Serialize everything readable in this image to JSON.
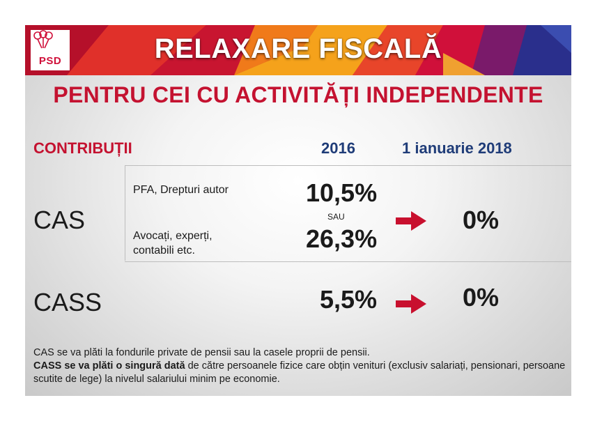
{
  "banner": {
    "logo_text": "PSD",
    "logo_icon": "rose-icon",
    "title": "RELAXARE FISCALĂ"
  },
  "subtitle": "PENTRU CEI CU ACTIVITĂȚI INDEPENDENTE",
  "table": {
    "header_label": "CONTRIBUȚII",
    "col_2016": "2016",
    "col_2018": "1 ianuarie 2018",
    "cas": {
      "label": "CAS",
      "row1_desc": "PFA, Drepturi autor",
      "row1_value": "10,5%",
      "or_text": "SAU",
      "row2_desc_line1": "Avocați, experți,",
      "row2_desc_line2": "contabili etc.",
      "row2_value": "26,3%",
      "new_value": "0%"
    },
    "cass": {
      "label": "CASS",
      "value_2016": "5,5%",
      "new_value": "0%"
    }
  },
  "notes": {
    "line1": "CAS se va plăti la fondurile private de pensii sau la casele proprii de pensii.",
    "line2_bold": "CASS se va plăti o singură dată",
    "line2_rest": " de către persoanele fizice care obțin venituri (exclusiv salariați, pensionari, persoane scutite de lege) la nivelul salariului minim pe economie."
  },
  "colors": {
    "accent_red": "#c41230",
    "accent_navy": "#1f3c78",
    "arrow_red": "#c8102e"
  }
}
